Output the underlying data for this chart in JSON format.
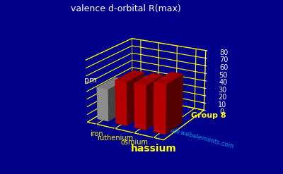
{
  "title": "valence d-orbital R(max)",
  "elements": [
    "iron",
    "ruthenium",
    "osmium",
    "hassium"
  ],
  "values": [
    42,
    56,
    57,
    63
  ],
  "ylabel": "pm",
  "ylim": [
    0,
    80
  ],
  "yticks": [
    0,
    10,
    20,
    30,
    40,
    50,
    60,
    70,
    80
  ],
  "group_label": "Group 8",
  "watermark": "www.webelements.com",
  "background_color": "#00008B",
  "bar_color_red": "#CC0000",
  "bar_color_iron": "#A0A0A0",
  "title_color": "#FFFFFF",
  "label_color": "#FFFF00",
  "grid_color": "#FFFF00",
  "axis_label_color": "#FFFFFF",
  "element_fontsizes": [
    7,
    7,
    7,
    10
  ],
  "element_fontweights": [
    "normal",
    "normal",
    "normal",
    "bold"
  ]
}
